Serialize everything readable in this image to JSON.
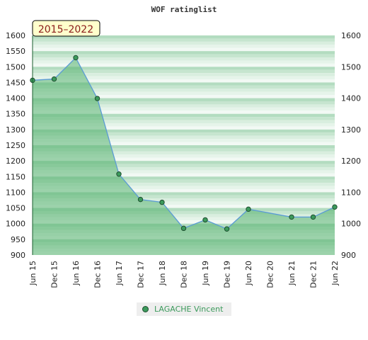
{
  "chart_data": {
    "type": "area",
    "title": "WOF ratinglist",
    "badge": "2015–2022",
    "categories": [
      "Jun 15",
      "Dec 15",
      "Jun 16",
      "Dec 16",
      "Jun 17",
      "Dec 17",
      "Jun 18",
      "Dec 18",
      "Jun 19",
      "Dec 19",
      "Jun 20",
      "Dec 20",
      "Jun 21",
      "Dec 21",
      "Jun 22"
    ],
    "series": [
      {
        "name": "LAGACHE Vincent",
        "values": [
          1457,
          1461,
          1529,
          1399,
          1158,
          1077,
          1068,
          985,
          1012,
          983,
          1046,
          null,
          1021,
          1021,
          1053
        ]
      }
    ],
    "ylim": [
      900,
      1600
    ],
    "yticks": [
      900,
      950,
      1000,
      1050,
      1100,
      1150,
      1200,
      1250,
      1300,
      1350,
      1400,
      1450,
      1500,
      1550,
      1600
    ],
    "yticks_right": [
      900,
      1000,
      1100,
      1200,
      1300,
      1400,
      1500,
      1600
    ],
    "legend_position": "bottom",
    "colors": {
      "line": "#5b9bd5",
      "area": "#56b36f",
      "marker": "#3c9a5c",
      "marker_edge": "#1f4f30",
      "band_dark": "#b3dcc0",
      "band_light": "#eef8f1",
      "badge_bg": "#ffffcc"
    }
  }
}
